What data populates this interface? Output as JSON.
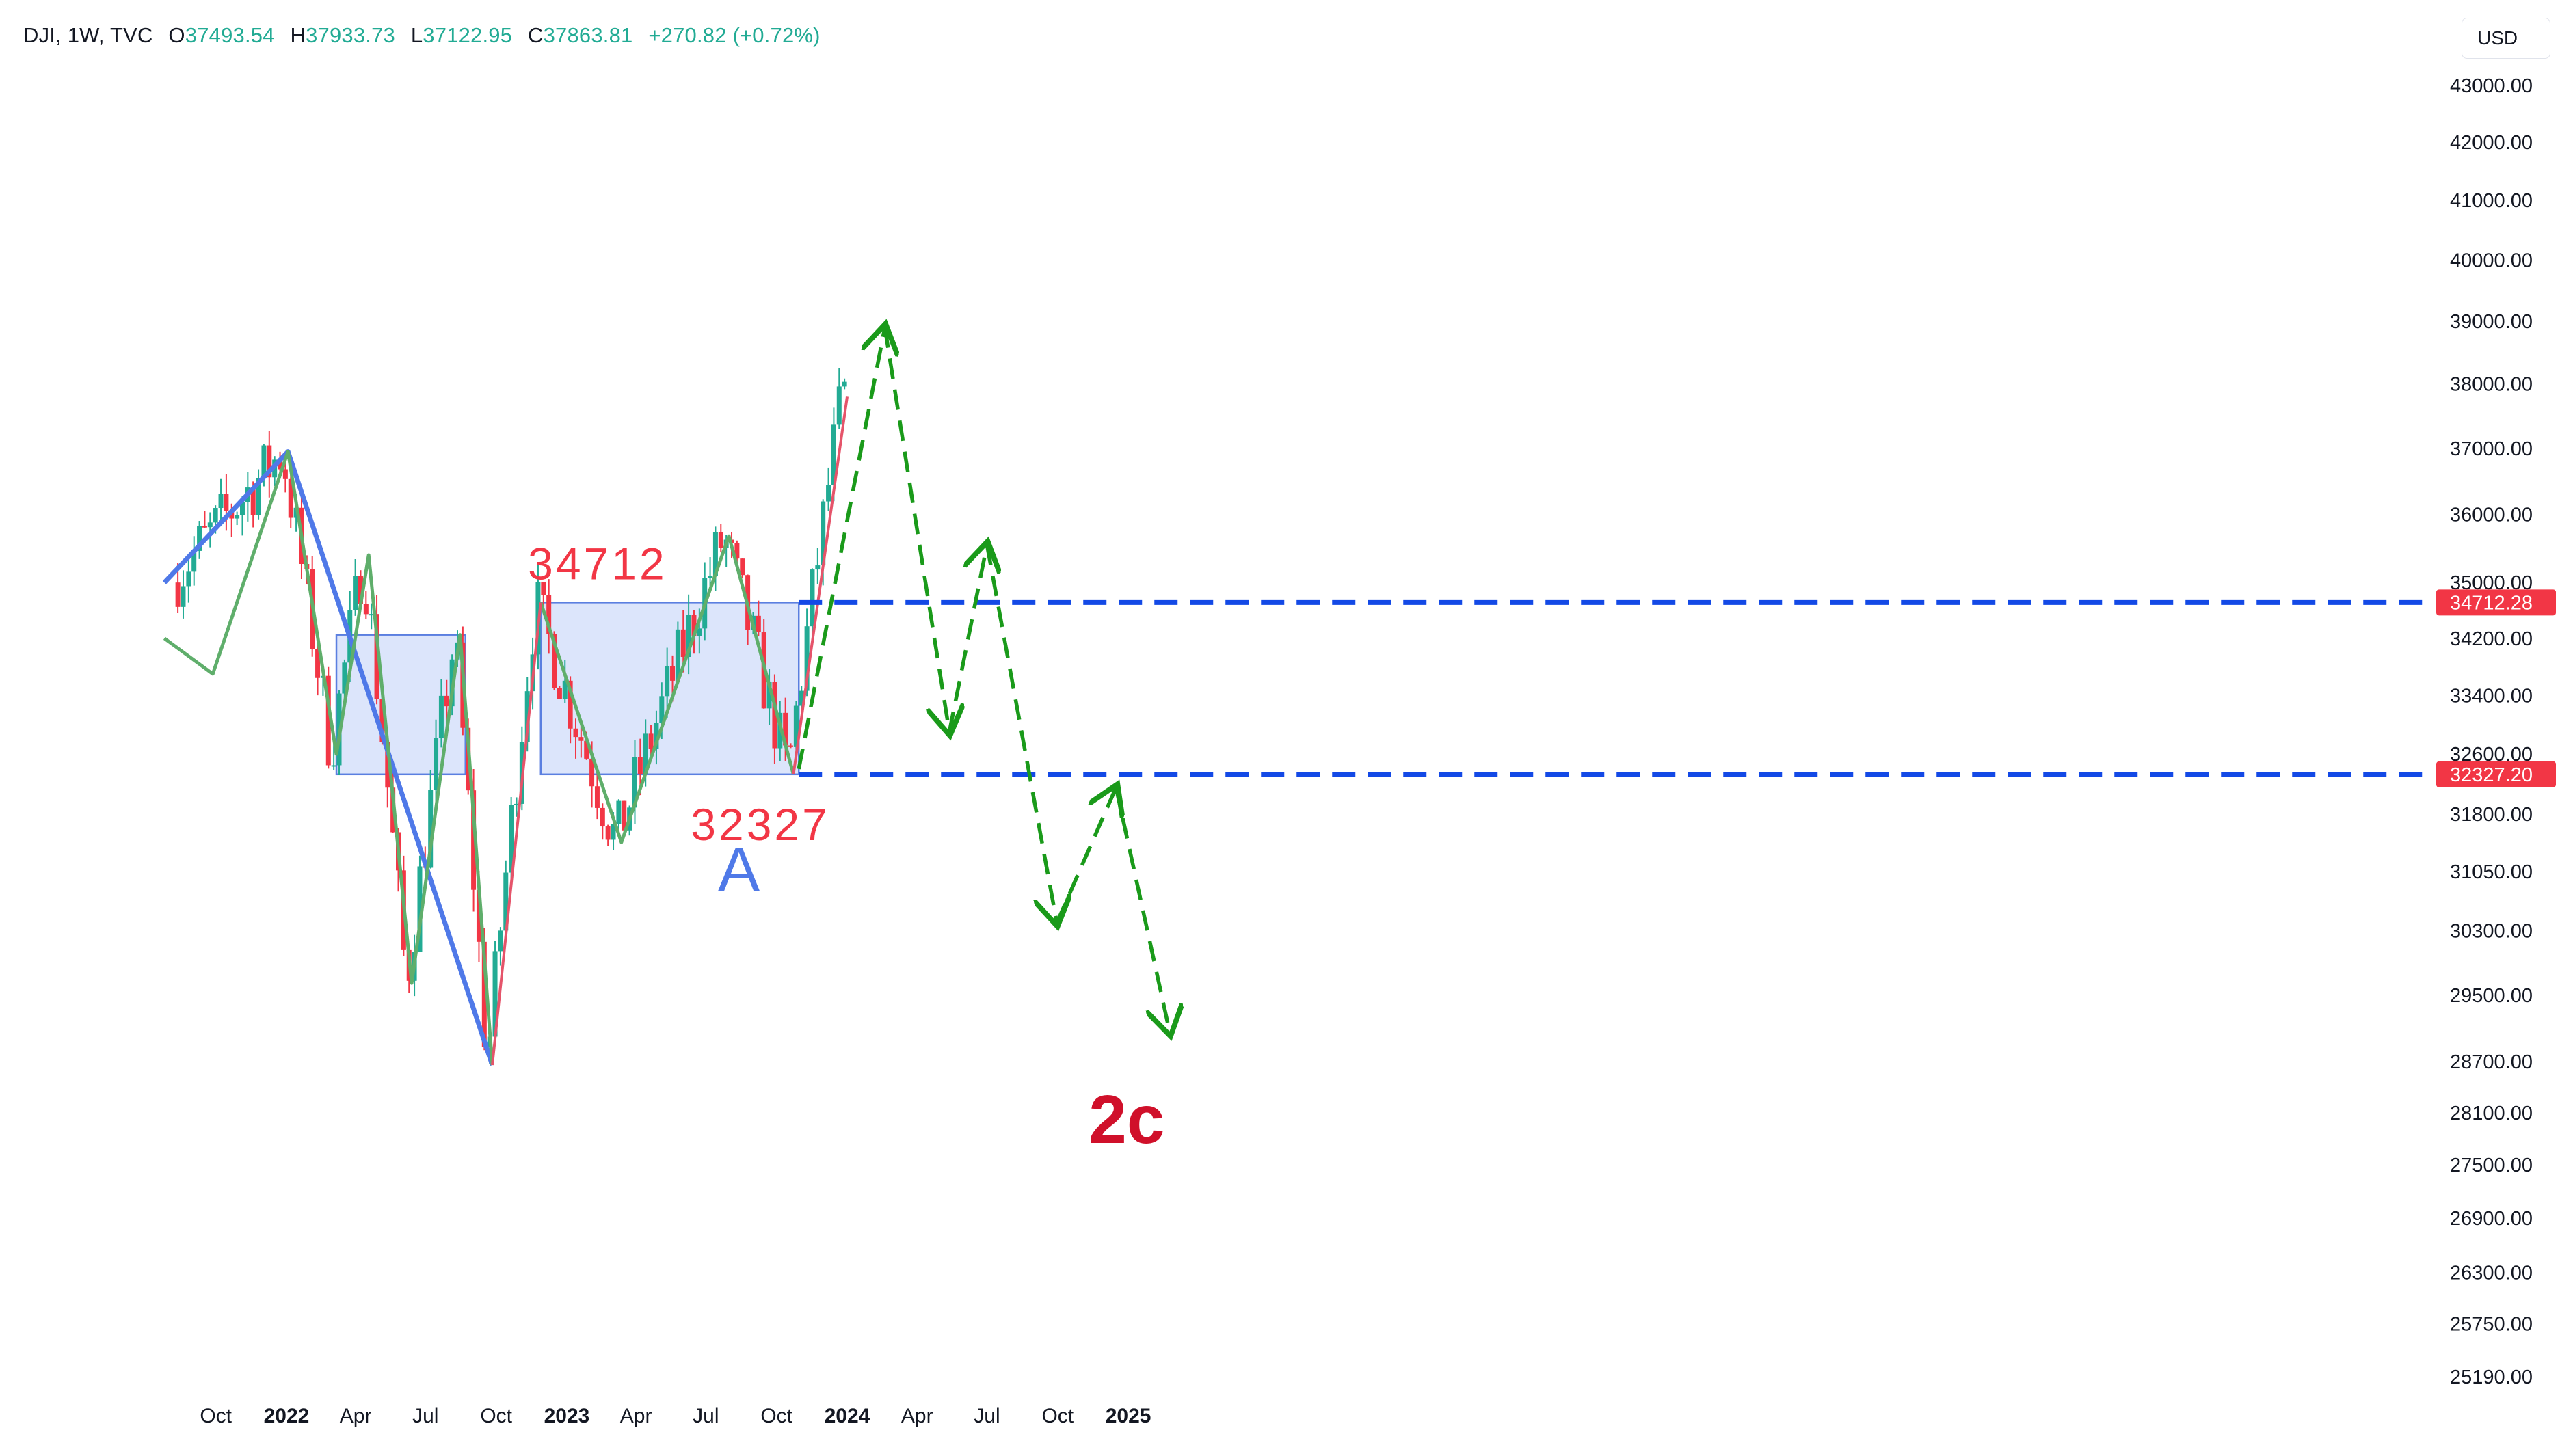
{
  "header": {
    "symbol": "DJI, 1W, TVC",
    "open_label": "O",
    "open": "37493.54",
    "high_label": "H",
    "high": "37933.73",
    "low_label": "L",
    "low": "37122.95",
    "close_label": "C",
    "close": "37863.81",
    "change": "+270.82 (+0.72%)"
  },
  "currency": "USD",
  "colors": {
    "up": "#22ab94",
    "down": "#f23645",
    "blue_line": "#4f79e8",
    "green_zig": "#5fae6b",
    "red_zig": "#e5546a",
    "thin_blue": "#5b7fe0",
    "box_fill": "#d6e0fa",
    "box_border": "#5b7fe0",
    "dash_blue": "#1349e6",
    "arrow_green": "#1a9a1a",
    "label_red": "#f23645",
    "wave_2c": "#d0102a"
  },
  "chart_data": {
    "type": "candlestick",
    "timeframe": "1W",
    "x_ticks": [
      "Oct",
      "2022",
      "Apr",
      "Jul",
      "Oct",
      "2023",
      "Apr",
      "Jul",
      "Oct",
      "2024",
      "Apr",
      "Jul",
      "Oct",
      "2025"
    ],
    "x_tick_dates": [
      "2021-10-01",
      "2022-01-01",
      "2022-04-01",
      "2022-07-01",
      "2022-10-01",
      "2023-01-01",
      "2023-04-01",
      "2023-07-01",
      "2023-10-01",
      "2024-01-01",
      "2024-04-01",
      "2024-07-01",
      "2024-10-01",
      "2025-01-01"
    ],
    "y_ticks": [
      "43000.00",
      "42000.00",
      "41000.00",
      "40000.00",
      "39000.00",
      "38000.00",
      "37000.00",
      "36000.00",
      "35000.00",
      "34200.00",
      "33400.00",
      "32600.00",
      "31800.00",
      "31050.00",
      "30300.00",
      "29500.00",
      "28700.00",
      "28100.00",
      "27500.00",
      "26900.00",
      "26300.00",
      "25750.00",
      "25190.00"
    ],
    "y_scale": "log",
    "price_tags": [
      "34712.28",
      "32327.20"
    ],
    "annotations": [
      "34712",
      "32327",
      "A",
      "2c"
    ],
    "key_points": [
      {
        "date": "2021-08-09",
        "price": 35000
      },
      {
        "date": "2022-01-03",
        "price": 36950
      },
      {
        "date": "2022-03-07",
        "price": 32600
      },
      {
        "date": "2022-04-18",
        "price": 35400
      },
      {
        "date": "2022-06-13",
        "price": 29650
      },
      {
        "date": "2022-08-15",
        "price": 34250
      },
      {
        "date": "2022-09-26",
        "price": 28660
      },
      {
        "date": "2022-11-28",
        "price": 34712
      },
      {
        "date": "2023-03-13",
        "price": 31430
      },
      {
        "date": "2023-07-31",
        "price": 35680
      },
      {
        "date": "2023-10-23",
        "price": 32327
      },
      {
        "date": "2024-01-01",
        "price": 37800
      }
    ],
    "range_boxes": [
      {
        "from": "2022-03-07",
        "to": "2022-08-22",
        "low": 32327,
        "high": 34250
      },
      {
        "from": "2022-11-28",
        "to": "2023-10-30",
        "low": 32327,
        "high": 34712
      }
    ],
    "levels": [
      34712.28,
      32327.2
    ],
    "projection_path": [
      {
        "date": "2023-10-30",
        "price": 32400
      },
      {
        "date": "2024-02-19",
        "price": 38900
      },
      {
        "date": "2024-05-13",
        "price": 32900
      },
      {
        "date": "2024-07-01",
        "price": 35550
      },
      {
        "date": "2024-09-30",
        "price": 30400
      },
      {
        "date": "2024-12-16",
        "price": 32150
      },
      {
        "date": "2025-02-24",
        "price": 29050
      }
    ]
  }
}
